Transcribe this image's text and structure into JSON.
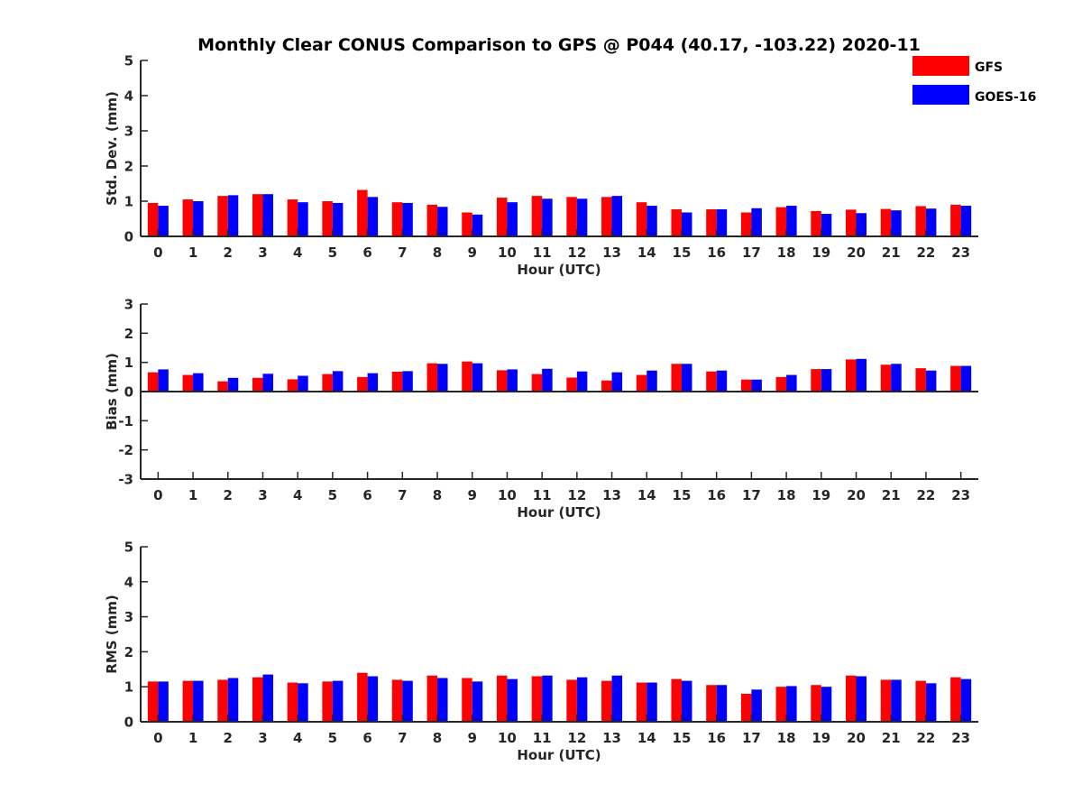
{
  "chart_data": {
    "type": "bar",
    "title": "Monthly Clear CONUS Comparison to GPS @ P044 (40.17, -103.22) 2020-11",
    "legend": {
      "placement": "top-right",
      "entries": [
        {
          "name": "GFS",
          "color": "#ff0000"
        },
        {
          "name": "GOES-16",
          "color": "#0000ff"
        }
      ]
    },
    "categories": [
      "0",
      "1",
      "2",
      "3",
      "4",
      "5",
      "6",
      "7",
      "8",
      "9",
      "10",
      "11",
      "12",
      "13",
      "14",
      "15",
      "16",
      "17",
      "18",
      "19",
      "20",
      "21",
      "22",
      "23"
    ],
    "panels": [
      {
        "id": "std",
        "ylabel": "Std. Dev. (mm)",
        "xlabel": "Hour (UTC)",
        "ylim": [
          0,
          5
        ],
        "yticks": [
          "0",
          "1",
          "2",
          "3",
          "4",
          "5"
        ],
        "series": [
          {
            "name": "GFS",
            "color": "#ff0000",
            "values": [
              0.95,
              1.05,
              1.15,
              1.2,
              1.05,
              1.0,
              1.32,
              0.97,
              0.9,
              0.68,
              1.1,
              1.15,
              1.12,
              1.12,
              0.97,
              0.77,
              0.77,
              0.68,
              0.83,
              0.72,
              0.76,
              0.78,
              0.86,
              0.9
            ]
          },
          {
            "name": "GOES-16",
            "color": "#0000ff",
            "values": [
              0.87,
              1.0,
              1.17,
              1.2,
              0.97,
              0.95,
              1.12,
              0.95,
              0.84,
              0.62,
              0.97,
              1.07,
              1.07,
              1.15,
              0.87,
              0.68,
              0.77,
              0.8,
              0.87,
              0.64,
              0.66,
              0.74,
              0.79,
              0.87
            ]
          }
        ]
      },
      {
        "id": "bias",
        "ylabel": "Bias (mm)",
        "xlabel": "Hour (UTC)",
        "ylim": [
          -3,
          3
        ],
        "yticks": [
          "-3",
          "-2",
          "-1",
          "0",
          "1",
          "2",
          "3"
        ],
        "series": [
          {
            "name": "GFS",
            "color": "#ff0000",
            "values": [
              0.66,
              0.57,
              0.35,
              0.47,
              0.42,
              0.6,
              0.5,
              0.68,
              0.97,
              1.03,
              0.73,
              0.6,
              0.48,
              0.38,
              0.57,
              0.95,
              0.69,
              0.41,
              0.5,
              0.77,
              1.1,
              0.92,
              0.8,
              0.88
            ]
          },
          {
            "name": "GOES-16",
            "color": "#0000ff",
            "values": [
              0.76,
              0.63,
              0.47,
              0.61,
              0.54,
              0.7,
              0.63,
              0.7,
              0.95,
              0.97,
              0.76,
              0.78,
              0.69,
              0.66,
              0.72,
              0.95,
              0.72,
              0.41,
              0.57,
              0.77,
              1.12,
              0.95,
              0.72,
              0.88
            ]
          }
        ]
      },
      {
        "id": "rms",
        "ylabel": "RMS (mm)",
        "xlabel": "Hour (UTC)",
        "ylim": [
          0,
          5
        ],
        "yticks": [
          "0",
          "1",
          "2",
          "3",
          "4",
          "5"
        ],
        "series": [
          {
            "name": "GFS",
            "color": "#ff0000",
            "values": [
              1.15,
              1.17,
              1.2,
              1.27,
              1.12,
              1.15,
              1.4,
              1.2,
              1.32,
              1.25,
              1.32,
              1.3,
              1.2,
              1.17,
              1.12,
              1.22,
              1.05,
              0.8,
              1.0,
              1.05,
              1.32,
              1.2,
              1.17,
              1.27
            ]
          },
          {
            "name": "GOES-16",
            "color": "#0000ff",
            "values": [
              1.15,
              1.17,
              1.25,
              1.35,
              1.1,
              1.17,
              1.3,
              1.17,
              1.25,
              1.15,
              1.22,
              1.32,
              1.27,
              1.32,
              1.12,
              1.17,
              1.05,
              0.92,
              1.02,
              1.0,
              1.3,
              1.2,
              1.1,
              1.22
            ]
          }
        ]
      }
    ]
  }
}
